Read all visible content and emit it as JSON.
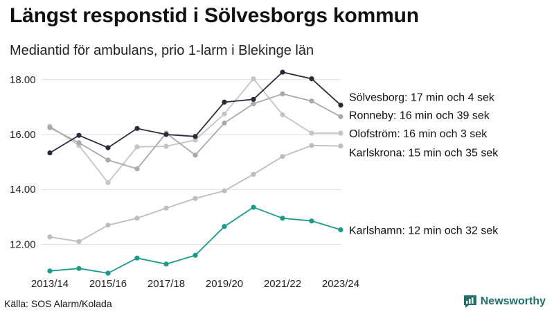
{
  "header": {
    "title": "Längst responstid i Sölvesborgs kommun",
    "subtitle": "Mediantid för ambulans, prio 1-larm i Blekinge län"
  },
  "footer": {
    "source": "Källa: SOS Alarm/Kolada",
    "brand": "Newsworthy",
    "brand_icon": "newsworthy-logo-icon"
  },
  "colors": {
    "solvesborg": "#2a2a3a",
    "ronneby": "#a9a9a9",
    "olofstrom": "#c4c4c4",
    "karlskrona": "#bdbdbd",
    "karlshamn": "#1a9b8a",
    "grid": "#dddddd",
    "brand": "#1f6f6a"
  },
  "chart_data": {
    "type": "line",
    "title": "Längst responstid i Sölvesborgs kommun",
    "subtitle": "Mediantid för ambulans, prio 1-larm i Blekinge län",
    "x": [
      "2013/14",
      "2014/15",
      "2015/16",
      "2016/17",
      "2017/18",
      "2018/19",
      "2019/20",
      "2020/21",
      "2021/22",
      "2022/23",
      "2023/24"
    ],
    "x_tick_labels": [
      "2013/14",
      "2015/16",
      "2017/18",
      "2019/20",
      "2021/22",
      "2023/24"
    ],
    "ylim": [
      11.0,
      18.5
    ],
    "y_ticks": [
      12.0,
      14.0,
      16.0,
      18.0
    ],
    "y_tick_labels": [
      "12.00",
      "14.00",
      "16.00",
      "18.00"
    ],
    "grid": true,
    "series": [
      {
        "key": "olofstrom",
        "name": "Olofström",
        "label": "Olofström: 16 min och 3 sek",
        "values": [
          16.3,
          15.6,
          14.25,
          15.55,
          15.57,
          15.8,
          16.75,
          18.03,
          16.72,
          16.05,
          16.05
        ]
      },
      {
        "key": "karlskrona",
        "name": "Karlskrona",
        "label": "Karlskrona: 15 min och 35 sek",
        "values": [
          12.27,
          12.1,
          12.7,
          12.95,
          13.32,
          13.67,
          13.95,
          14.55,
          15.2,
          15.6,
          15.58
        ]
      },
      {
        "key": "ronneby",
        "name": "Ronneby",
        "label": "Ronneby: 16 min och 39 sek",
        "values": [
          16.25,
          15.7,
          15.07,
          14.75,
          16.05,
          15.25,
          16.42,
          17.12,
          17.48,
          17.22,
          16.65
        ]
      },
      {
        "key": "karlshamn",
        "name": "Karlshamn",
        "label": "Karlshamn: 12 min och 32 sek",
        "values": [
          11.03,
          11.12,
          10.95,
          11.5,
          11.28,
          11.6,
          12.65,
          13.35,
          12.95,
          12.85,
          12.53
        ]
      },
      {
        "key": "solvesborg",
        "name": "Sölvesborg",
        "label": "Sölvesborg: 17 min och 4 sek",
        "values": [
          15.33,
          15.97,
          15.52,
          16.22,
          16.0,
          15.93,
          17.18,
          17.28,
          18.27,
          18.03,
          17.07
        ]
      }
    ]
  }
}
